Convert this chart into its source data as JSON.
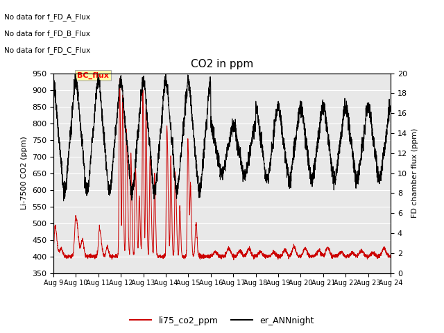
{
  "title": "CO2 in ppm",
  "ylabel_left": "Li-7500 CO2 (ppm)",
  "ylabel_right": "FD chamber flux (ppm)",
  "ylim_left": [
    350,
    950
  ],
  "ylim_right": [
    0,
    20
  ],
  "yticks_left": [
    350,
    400,
    450,
    500,
    550,
    600,
    650,
    700,
    750,
    800,
    850,
    900,
    950
  ],
  "yticks_right": [
    0,
    2,
    4,
    6,
    8,
    10,
    12,
    14,
    16,
    18,
    20
  ],
  "xlabel_ticks": [
    "Aug 9",
    "Aug 10",
    "Aug 11",
    "Aug 12",
    "Aug 13",
    "Aug 14",
    "Aug 15",
    "Aug 16",
    "Aug 17",
    "Aug 18",
    "Aug 19",
    "Aug 20",
    "Aug 21",
    "Aug 22",
    "Aug 23",
    "Aug 24"
  ],
  "no_data_texts": [
    "No data for f_FD_A_Flux",
    "No data for f_FD_B_Flux",
    "No data for f_FD_C_Flux"
  ],
  "bc_flux_label": "BC_flux",
  "legend_entries": [
    "li75_co2_ppm",
    "er_ANNnight"
  ],
  "legend_colors": [
    "#cc0000",
    "#000000"
  ],
  "plot_bg_color": "#e8e8e8",
  "red_line_color": "#cc0000",
  "black_line_color": "#000000",
  "figsize": [
    6.4,
    4.8
  ],
  "dpi": 100
}
